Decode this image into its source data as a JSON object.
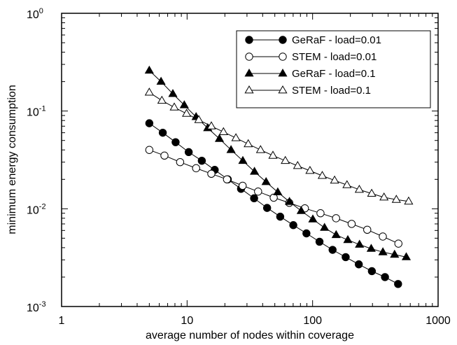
{
  "chart_data": {
    "type": "line",
    "xscale": "log",
    "yscale": "log",
    "xlim": [
      1,
      1000
    ],
    "ylim": [
      0.001,
      1
    ],
    "xlabel": "average number of nodes within coverage",
    "ylabel": "minimum energy consumption",
    "grid": false,
    "legend_position": "top-right",
    "x_ticks": [
      {
        "value": 1,
        "label": "1"
      },
      {
        "value": 10,
        "label": "10"
      },
      {
        "value": 100,
        "label": "100"
      },
      {
        "value": 1000,
        "label": "1000"
      }
    ],
    "y_ticks": [
      {
        "value": 0.001,
        "base": "10",
        "exp": "-3"
      },
      {
        "value": 0.01,
        "base": "10",
        "exp": "-2"
      },
      {
        "value": 0.1,
        "base": "10",
        "exp": "-1"
      },
      {
        "value": 1,
        "base": "10",
        "exp": "0"
      }
    ],
    "series": [
      {
        "name": "GeRaF - load=0.01",
        "marker": "circle",
        "filled": true,
        "x": [
          5,
          6.4,
          8.1,
          10.3,
          13.1,
          16.6,
          21.1,
          26.9,
          34.2,
          43.4,
          55.2,
          70.2,
          89.3,
          113.5,
          144.3,
          183.5,
          233.4,
          296.7,
          377.3,
          479.8
        ],
        "y": [
          0.075,
          0.06,
          0.048,
          0.038,
          0.031,
          0.025,
          0.02,
          0.016,
          0.0128,
          0.0102,
          0.0083,
          0.0068,
          0.0056,
          0.0046,
          0.0038,
          0.0032,
          0.0027,
          0.0023,
          0.002,
          0.0017
        ]
      },
      {
        "name": "STEM - load=0.01",
        "marker": "circle",
        "filled": false,
        "x": [
          5,
          6.6,
          8.8,
          11.8,
          15.6,
          20.8,
          27.7,
          36.8,
          49,
          65.2,
          86.8,
          115.6,
          153.8,
          204.7,
          272.5,
          362.7,
          482.7
        ],
        "y": [
          0.04,
          0.035,
          0.03,
          0.026,
          0.0228,
          0.02,
          0.0172,
          0.015,
          0.013,
          0.0115,
          0.0101,
          0.009,
          0.008,
          0.007,
          0.0061,
          0.0052,
          0.0044
        ]
      },
      {
        "name": "GeRaF - load=0.1",
        "marker": "triangle",
        "filled": true,
        "x": [
          5,
          6.2,
          7.7,
          9.5,
          11.8,
          14.6,
          18.1,
          22.4,
          27.8,
          34.4,
          42.6,
          52.8,
          65.4,
          81.1,
          100.4,
          124.4,
          154.1,
          190.9,
          236.5,
          293.1,
          363.1,
          449.9,
          557.4
        ],
        "y": [
          0.26,
          0.2,
          0.15,
          0.115,
          0.087,
          0.067,
          0.052,
          0.04,
          0.031,
          0.024,
          0.0188,
          0.0148,
          0.0118,
          0.0095,
          0.0078,
          0.0064,
          0.0054,
          0.0048,
          0.0043,
          0.0039,
          0.0036,
          0.0034,
          0.0032
        ]
      },
      {
        "name": "STEM - load=0.1",
        "marker": "triangle",
        "filled": false,
        "x": [
          5,
          6.3,
          7.9,
          9.9,
          12.4,
          15.6,
          19.5,
          24.5,
          30.7,
          38.5,
          48.3,
          60.6,
          76,
          95.3,
          119.5,
          149.8,
          187.9,
          235.6,
          295.5,
          370.5,
          464.7,
          582.8
        ],
        "y": [
          0.155,
          0.128,
          0.109,
          0.094,
          0.081,
          0.07,
          0.061,
          0.053,
          0.046,
          0.04,
          0.035,
          0.031,
          0.0275,
          0.0245,
          0.0218,
          0.0195,
          0.0175,
          0.0157,
          0.0143,
          0.0131,
          0.0124,
          0.0119
        ]
      }
    ]
  }
}
